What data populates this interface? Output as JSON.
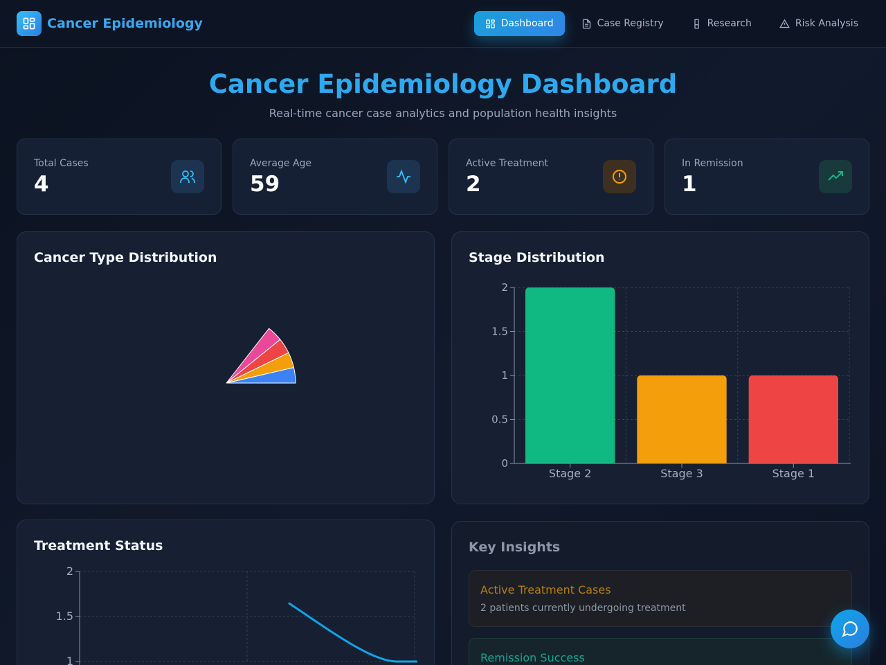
{
  "navbar": {
    "brand": "Cancer Epidemiology",
    "links": [
      {
        "label": "Dashboard",
        "icon": "dashboard-icon",
        "active": true
      },
      {
        "label": "Case Registry",
        "icon": "document-icon",
        "active": false
      },
      {
        "label": "Research",
        "icon": "flask-icon",
        "active": false
      },
      {
        "label": "Risk Analysis",
        "icon": "warning-icon",
        "active": false
      }
    ]
  },
  "hero": {
    "title": "Cancer Epidemiology Dashboard",
    "subtitle": "Real-time cancer case analytics and population health insights"
  },
  "stats": [
    {
      "label": "Total Cases",
      "value": "4",
      "icon": "users-icon",
      "color": "#38bdf8"
    },
    {
      "label": "Average Age",
      "value": "59",
      "icon": "activity-icon",
      "color": "#38bdf8"
    },
    {
      "label": "Active Treatment",
      "value": "2",
      "icon": "alert-circle-icon",
      "color": "#f59e0b"
    },
    {
      "label": "In Remission",
      "value": "1",
      "icon": "trending-up-icon",
      "color": "#10b981"
    }
  ],
  "panels": {
    "cancer_type": {
      "title": "Cancer Type Distribution"
    },
    "stage": {
      "title": "Stage Distribution"
    },
    "treatment": {
      "title": "Treatment Status"
    },
    "insights": {
      "title": "Key Insights",
      "items": [
        {
          "title": "Active Treatment Cases",
          "text": "2 patients currently undergoing treatment",
          "color": "#f59e0b"
        },
        {
          "title": "Remission Success",
          "text": "",
          "color": "#14b8a6"
        }
      ]
    }
  },
  "chat_button": {
    "icon": "chat-bubble-icon"
  },
  "chart_data": [
    {
      "type": "pie",
      "title": "Cancer Type Distribution",
      "values": [
        1,
        1,
        1,
        1
      ],
      "colors": [
        "#3b82f6",
        "#f59e0b",
        "#ef4444",
        "#ec4899"
      ],
      "note_angles_deg": [
        0,
        0,
        0,
        0
      ]
    },
    {
      "type": "bar",
      "title": "Stage Distribution",
      "categories": [
        "Stage 2",
        "Stage 3",
        "Stage 1"
      ],
      "values": [
        2,
        1,
        1
      ],
      "colors": [
        "#10b981",
        "#f59e0b",
        "#ef4444"
      ],
      "ylim": [
        0,
        2
      ],
      "yticks": [
        "0",
        "0.5",
        "1",
        "1.5",
        "2"
      ],
      "grid": true
    },
    {
      "type": "line",
      "title": "Treatment Status",
      "x": [
        1,
        2
      ],
      "values": [
        1.65,
        1
      ],
      "ylim": [
        1,
        2
      ],
      "yticks": [
        "1",
        "1.5",
        "2"
      ],
      "color": "#0ea5e9",
      "grid": true
    }
  ]
}
